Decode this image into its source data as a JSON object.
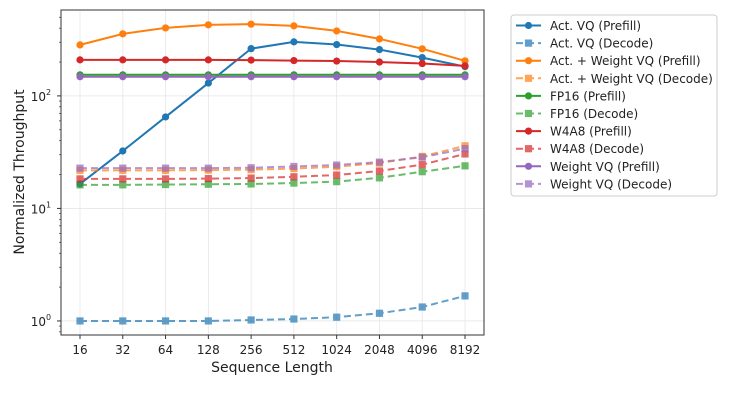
{
  "chart_data": {
    "type": "line",
    "title": "",
    "xlabel": "Sequence Length",
    "ylabel": "Normalized Throughput",
    "categories": [
      "16",
      "32",
      "64",
      "128",
      "256",
      "512",
      "1024",
      "2048",
      "4096",
      "8192"
    ],
    "yscale": "log",
    "ylim": [
      0.75,
      580
    ],
    "yticks": [
      {
        "value": 1,
        "label": "10",
        "exp": "0"
      },
      {
        "value": 10,
        "label": "10",
        "exp": "1"
      },
      {
        "value": 100,
        "label": "10",
        "exp": "2"
      }
    ],
    "grid": true,
    "legend_placement": "outside-right",
    "series": [
      {
        "name": "Act. VQ (Prefill)",
        "color": "#1f77b4",
        "style": "solid",
        "marker": "circle",
        "values": [
          16.5,
          32.4,
          65,
          130,
          263,
          302,
          286,
          258,
          219,
          182
        ]
      },
      {
        "name": "Act. VQ (Decode)",
        "color": "#1f77b4",
        "style": "dashed",
        "marker": "square",
        "values": [
          1.0,
          1.0,
          1.0,
          1.0,
          1.02,
          1.04,
          1.08,
          1.17,
          1.33,
          1.67
        ]
      },
      {
        "name": "Act. + Weight VQ (Prefill)",
        "color": "#ff7f0e",
        "style": "solid",
        "marker": "circle",
        "values": [
          284,
          356,
          402,
          428,
          434,
          419,
          378,
          321,
          262,
          205
        ]
      },
      {
        "name": "Act. + Weight VQ (Decode)",
        "color": "#ff7f0e",
        "style": "dashed",
        "marker": "square",
        "values": [
          21.8,
          21.8,
          21.8,
          21.9,
          22.1,
          22.6,
          23.5,
          25.3,
          29,
          36
        ]
      },
      {
        "name": "FP16 (Prefill)",
        "color": "#2ca02c",
        "style": "solid",
        "marker": "circle",
        "values": [
          154,
          154,
          154,
          154,
          154,
          154,
          154,
          154,
          154,
          154
        ]
      },
      {
        "name": "FP16 (Decode)",
        "color": "#2ca02c",
        "style": "dashed",
        "marker": "square",
        "values": [
          16.2,
          16.2,
          16.3,
          16.4,
          16.5,
          16.8,
          17.3,
          18.7,
          21.2,
          23.9
        ]
      },
      {
        "name": "W4A8 (Prefill)",
        "color": "#d62728",
        "style": "solid",
        "marker": "circle",
        "values": [
          209,
          209,
          209,
          209,
          208,
          206,
          204,
          200,
          194,
          185
        ]
      },
      {
        "name": "W4A8 (Decode)",
        "color": "#d62728",
        "style": "dashed",
        "marker": "square",
        "values": [
          18.3,
          18.3,
          18.3,
          18.4,
          18.6,
          19.1,
          19.8,
          21.5,
          24.5,
          30.5
        ]
      },
      {
        "name": "Weight VQ (Prefill)",
        "color": "#9467bd",
        "style": "solid",
        "marker": "circle",
        "values": [
          148,
          148,
          148,
          148,
          148,
          148,
          148,
          148,
          148,
          148
        ]
      },
      {
        "name": "Weight VQ (Decode)",
        "color": "#9467bd",
        "style": "dashed",
        "marker": "square",
        "values": [
          22.8,
          22.8,
          22.8,
          22.8,
          23,
          23.6,
          24.3,
          25.8,
          28.5,
          34
        ]
      }
    ]
  }
}
